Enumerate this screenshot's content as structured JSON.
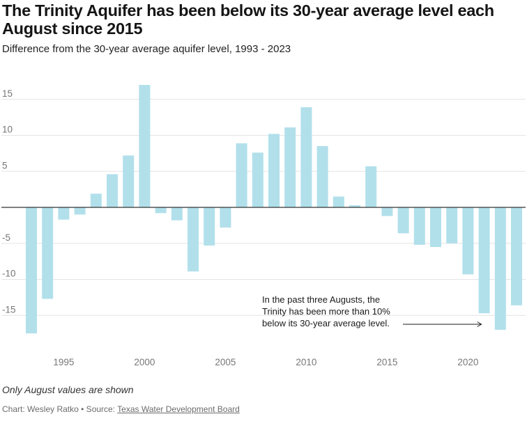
{
  "header": {
    "title": "The Trinity Aquifer has been below its 30-year average level each August since 2015",
    "subtitle": "Difference from the 30-year average aquifer level, 1993 - 2023"
  },
  "footer": {
    "note": "Only August values are shown",
    "credit_prefix": "Chart: Wesley Ratko • Source: ",
    "source_link": "Texas Water Development Board"
  },
  "colors": {
    "bar": "#b1e0eb",
    "grid": "#e4e4e4",
    "zero": "#333333"
  },
  "chart_data": {
    "type": "bar",
    "title": "The Trinity Aquifer has been below its 30-year average level each August since 2015",
    "subtitle": "Difference from the 30-year average aquifer level, 1993 - 2023",
    "xlabel": "",
    "ylabel": "",
    "x": [
      1993,
      1994,
      1995,
      1996,
      1997,
      1998,
      1999,
      2000,
      2001,
      2002,
      2003,
      2004,
      2005,
      2006,
      2007,
      2008,
      2009,
      2010,
      2011,
      2012,
      2013,
      2014,
      2015,
      2016,
      2017,
      2018,
      2019,
      2020,
      2021,
      2022,
      2023
    ],
    "values": [
      -17.5,
      -12.7,
      -1.7,
      -1.0,
      1.9,
      4.6,
      7.2,
      17.0,
      -0.8,
      -1.8,
      -8.9,
      -5.3,
      -2.8,
      8.9,
      7.6,
      10.2,
      11.1,
      13.9,
      8.5,
      1.5,
      0.3,
      5.7,
      -1.2,
      -3.6,
      -5.2,
      -5.5,
      -5.0,
      -9.3,
      -14.7,
      -17.0,
      -13.6
    ],
    "ylim": [
      -20,
      20
    ],
    "yticks": [
      15,
      10,
      5,
      -5,
      -10,
      -15
    ],
    "ytick_labels": [
      "15",
      "10",
      "5",
      "-5",
      "-10",
      "-15"
    ],
    "xticks": [
      1995,
      2000,
      2005,
      2010,
      2015,
      2020
    ],
    "xtick_labels": [
      "1995",
      "2000",
      "2005",
      "2010",
      "2015",
      "2020"
    ],
    "grid": true,
    "legend": "none",
    "annotation": {
      "lines": [
        "In the past three Augusts, the",
        "Trinity has been more than 10%",
        "below its 30-year average level."
      ],
      "points_to": 2021
    }
  }
}
